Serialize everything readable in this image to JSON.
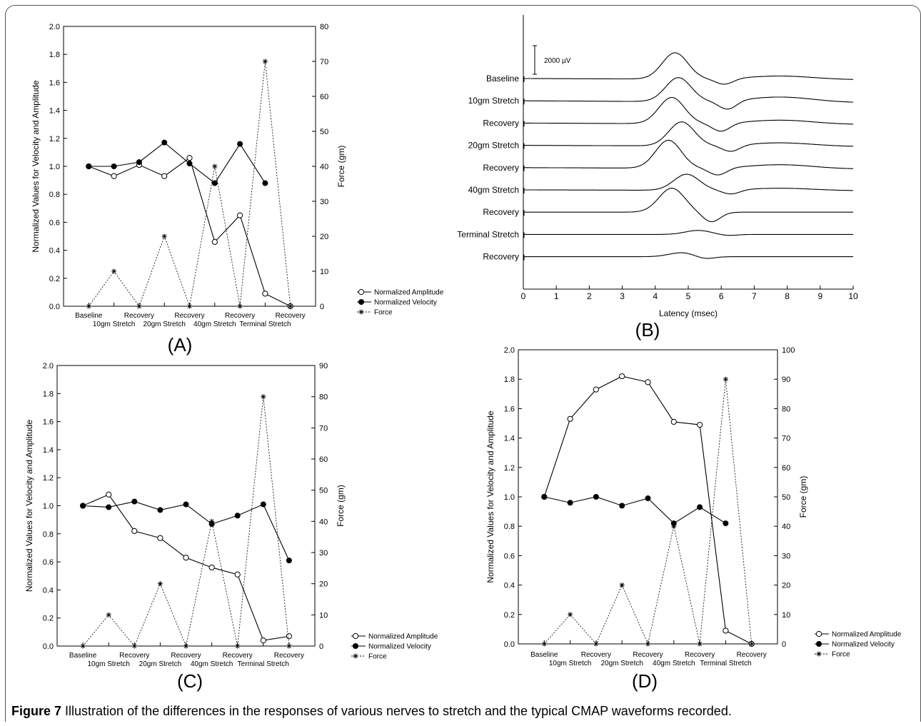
{
  "caption": {
    "label": "Figure 7",
    "text": "Illustration of the differences in the responses of various nerves to stretch and the typical CMAP waveforms recorded."
  },
  "chart_data": [
    {
      "id": "A",
      "panel_label": "(A)",
      "type": "line",
      "categories": [
        "Baseline",
        "10gm Stretch",
        "Recovery",
        "20gm Stretch",
        "Recovery",
        "40gm Stretch",
        "Recovery",
        "Terminal Stretch",
        "Recovery"
      ],
      "ylabel": "Normalized Values for Velocity and Amplitude",
      "y2label": "Force (gm)",
      "ylim": [
        0,
        2.0
      ],
      "y2lim": [
        0,
        80
      ],
      "yticks": [
        "0.0",
        "0.2",
        "0.4",
        "0.6",
        "0.8",
        "1.0",
        "1.2",
        "1.4",
        "1.6",
        "1.8",
        "2.0"
      ],
      "y2ticks": [
        "0",
        "10",
        "20",
        "30",
        "40",
        "50",
        "60",
        "70",
        "80"
      ],
      "series": [
        {
          "name": "Normalized Amplitude",
          "values": [
            1.0,
            0.93,
            1.01,
            0.93,
            1.06,
            0.46,
            0.65,
            0.09,
            0.0
          ]
        },
        {
          "name": "Normalized Velocity",
          "values": [
            1.0,
            1.0,
            1.03,
            1.17,
            1.02,
            0.88,
            1.16,
            0.88,
            null
          ]
        },
        {
          "name": "Force",
          "axis": "right",
          "values": [
            0,
            10,
            0,
            20,
            0,
            40,
            0,
            70,
            0
          ]
        }
      ],
      "legend": "bottom-right"
    },
    {
      "id": "B",
      "panel_label": "(B)",
      "type": "line",
      "xlabel": "Latency (msec)",
      "xlim": [
        0,
        10
      ],
      "xticks": [
        "0",
        "1",
        "2",
        "3",
        "4",
        "5",
        "6",
        "7",
        "8",
        "9",
        "10"
      ],
      "scale_bar": "2000 µV",
      "trace_labels": [
        "Baseline",
        "10gm Stretch",
        "Recovery",
        "20gm Stretch",
        "Recovery",
        "40gm Stretch",
        "Recovery",
        "Terminal Stretch",
        "Recovery"
      ],
      "traces": [
        {
          "peak_latency": 4.6,
          "peak_amp": 0.92,
          "trough_latency": 6.1,
          "trough_amp": 0.2,
          "late_amp": 0.12
        },
        {
          "peak_latency": 4.7,
          "peak_amp": 0.84,
          "trough_latency": 6.2,
          "trough_amp": 0.3,
          "late_amp": 0.18
        },
        {
          "peak_latency": 4.5,
          "peak_amp": 0.92,
          "trough_latency": 6.0,
          "trough_amp": 0.28,
          "late_amp": 0.14
        },
        {
          "peak_latency": 4.8,
          "peak_amp": 0.84,
          "trough_latency": 6.3,
          "trough_amp": 0.22,
          "late_amp": 0.12
        },
        {
          "peak_latency": 4.4,
          "peak_amp": 0.98,
          "trough_latency": 5.9,
          "trough_amp": 0.25,
          "late_amp": 0.14
        },
        {
          "peak_latency": 4.95,
          "peak_amp": 0.56,
          "trough_latency": 6.3,
          "trough_amp": 0.15,
          "late_amp": 0.08
        },
        {
          "peak_latency": 4.5,
          "peak_amp": 0.84,
          "trough_latency": 5.7,
          "trough_amp": 0.34,
          "late_amp": 0.0
        },
        {
          "peak_latency": 5.3,
          "peak_amp": 0.14,
          "trough_latency": 6.2,
          "trough_amp": 0.04,
          "late_amp": 0.0
        },
        {
          "peak_latency": 4.8,
          "peak_amp": 0.14,
          "trough_latency": 5.5,
          "trough_amp": 0.08,
          "late_amp": 0.0
        }
      ]
    },
    {
      "id": "C",
      "panel_label": "(C)",
      "type": "line",
      "categories": [
        "Baseline",
        "10gm Stretch",
        "Recovery",
        "20gm Stretch",
        "Recovery",
        "40gm Stretch",
        "Recovery",
        "Terminal Stretch",
        "Recovery"
      ],
      "ylabel": "Normalized Values for Velocity and Amplitude",
      "y2label": "Force (gm)",
      "ylim": [
        0,
        2.0
      ],
      "y2lim": [
        0,
        90
      ],
      "yticks": [
        "0.0",
        "0.2",
        "0.4",
        "0.6",
        "0.8",
        "1.0",
        "1.2",
        "1.4",
        "1.6",
        "1.8",
        "2.0"
      ],
      "y2ticks": [
        "0",
        "10",
        "20",
        "30",
        "40",
        "50",
        "60",
        "70",
        "80",
        "90"
      ],
      "series": [
        {
          "name": "Normalized Amplitude",
          "values": [
            1.0,
            1.08,
            0.82,
            0.77,
            0.63,
            0.56,
            0.51,
            0.04,
            0.07
          ]
        },
        {
          "name": "Normalized Velocity",
          "values": [
            1.0,
            0.99,
            1.03,
            0.97,
            1.01,
            0.87,
            0.93,
            1.01,
            0.61
          ]
        },
        {
          "name": "Force",
          "axis": "right",
          "values": [
            0,
            10,
            0,
            20,
            0,
            40,
            0,
            80,
            0
          ]
        }
      ],
      "legend": "bottom-right"
    },
    {
      "id": "D",
      "panel_label": "(D)",
      "type": "line",
      "categories": [
        "Baseline",
        "10gm Stretch",
        "Recovery",
        "20gm Stretch",
        "Recovery",
        "40gm Stretch",
        "Recovery",
        "Terminal Stretch",
        "Recovery"
      ],
      "ylabel": "Normalized Values for Velocity and Amplitude",
      "y2label": "Force (gm)",
      "ylim": [
        0,
        2.0
      ],
      "y2lim": [
        0,
        100
      ],
      "yticks": [
        "0.0",
        "0.2",
        "0.4",
        "0.6",
        "0.8",
        "1.0",
        "1.2",
        "1.4",
        "1.6",
        "1.8",
        "2.0"
      ],
      "y2ticks": [
        "0",
        "10",
        "20",
        "30",
        "40",
        "50",
        "60",
        "70",
        "80",
        "90",
        "100"
      ],
      "series": [
        {
          "name": "Normalized Amplitude",
          "values": [
            1.0,
            1.53,
            1.73,
            1.82,
            1.78,
            1.51,
            1.49,
            0.09,
            0.0
          ]
        },
        {
          "name": "Normalized Velocity",
          "values": [
            1.0,
            0.96,
            1.0,
            0.94,
            0.99,
            0.82,
            0.93,
            0.82,
            null
          ]
        },
        {
          "name": "Force",
          "axis": "right",
          "values": [
            0,
            10,
            0,
            20,
            0,
            40,
            0,
            90,
            0
          ]
        }
      ],
      "legend": "bottom-right"
    }
  ]
}
